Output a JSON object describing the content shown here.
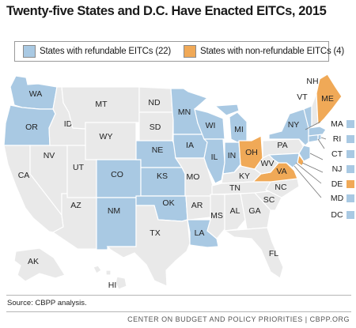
{
  "title": "Twenty-five States and D.C. Have Enacted EITCs, 2015",
  "colors": {
    "refundable": "#a9c9e3",
    "non_refundable": "#f0a957",
    "none": "#e9e9e9",
    "border": "#ffffff"
  },
  "legend": {
    "refundable_label": "States with refundable EITCs (22)",
    "non_refundable_label": "States with non-refundable EITCs (4)"
  },
  "states": [
    {
      "label": "WA",
      "category": "refundable"
    },
    {
      "label": "OR",
      "category": "refundable"
    },
    {
      "label": "CA",
      "category": "none"
    },
    {
      "label": "NV",
      "category": "none"
    },
    {
      "label": "ID",
      "category": "none"
    },
    {
      "label": "MT",
      "category": "none"
    },
    {
      "label": "WY",
      "category": "none"
    },
    {
      "label": "UT",
      "category": "none"
    },
    {
      "label": "AZ",
      "category": "none"
    },
    {
      "label": "CO",
      "category": "refundable"
    },
    {
      "label": "NM",
      "category": "refundable"
    },
    {
      "label": "ND",
      "category": "none"
    },
    {
      "label": "SD",
      "category": "none"
    },
    {
      "label": "NE",
      "category": "refundable"
    },
    {
      "label": "KS",
      "category": "refundable"
    },
    {
      "label": "OK",
      "category": "refundable"
    },
    {
      "label": "TX",
      "category": "none"
    },
    {
      "label": "MN",
      "category": "refundable"
    },
    {
      "label": "IA",
      "category": "refundable"
    },
    {
      "label": "MO",
      "category": "none"
    },
    {
      "label": "AR",
      "category": "none"
    },
    {
      "label": "LA",
      "category": "refundable"
    },
    {
      "label": "WI",
      "category": "refundable"
    },
    {
      "label": "IL",
      "category": "refundable"
    },
    {
      "label": "MI",
      "category": "refundable"
    },
    {
      "label": "IN",
      "category": "refundable"
    },
    {
      "label": "OH",
      "category": "non_refundable"
    },
    {
      "label": "KY",
      "category": "none"
    },
    {
      "label": "TN",
      "category": "none"
    },
    {
      "label": "MS",
      "category": "none"
    },
    {
      "label": "AL",
      "category": "none"
    },
    {
      "label": "GA",
      "category": "none"
    },
    {
      "label": "FL",
      "category": "none"
    },
    {
      "label": "SC",
      "category": "none"
    },
    {
      "label": "NC",
      "category": "none"
    },
    {
      "label": "VA",
      "category": "non_refundable"
    },
    {
      "label": "WV",
      "category": "none"
    },
    {
      "label": "PA",
      "category": "none"
    },
    {
      "label": "NY",
      "category": "refundable"
    },
    {
      "label": "VT",
      "category": "refundable"
    },
    {
      "label": "NH",
      "category": "none"
    },
    {
      "label": "ME",
      "category": "non_refundable"
    },
    {
      "label": "AK",
      "category": "none"
    },
    {
      "label": "HI",
      "category": "none"
    }
  ],
  "small_states": [
    {
      "label": "MA",
      "category": "refundable"
    },
    {
      "label": "RI",
      "category": "refundable"
    },
    {
      "label": "CT",
      "category": "refundable"
    },
    {
      "label": "NJ",
      "category": "refundable"
    },
    {
      "label": "DE",
      "category": "non_refundable"
    },
    {
      "label": "MD",
      "category": "refundable"
    },
    {
      "label": "DC",
      "category": "refundable"
    }
  ],
  "source": "Source: CBPP analysis.",
  "footer": "CENTER ON BUDGET AND POLICY PRIORITIES | CBPP.ORG"
}
